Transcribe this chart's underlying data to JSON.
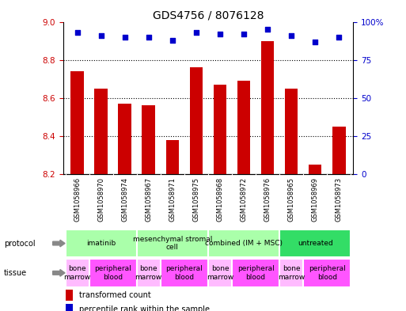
{
  "title": "GDS4756 / 8076128",
  "samples": [
    "GSM1058966",
    "GSM1058970",
    "GSM1058974",
    "GSM1058967",
    "GSM1058971",
    "GSM1058975",
    "GSM1058968",
    "GSM1058972",
    "GSM1058976",
    "GSM1058965",
    "GSM1058969",
    "GSM1058973"
  ],
  "transformed_count": [
    8.74,
    8.65,
    8.57,
    8.56,
    8.38,
    8.76,
    8.67,
    8.69,
    8.9,
    8.65,
    8.25,
    8.45
  ],
  "percentile_rank": [
    93,
    91,
    90,
    90,
    88,
    93,
    92,
    92,
    95,
    91,
    87,
    90
  ],
  "ylim_left": [
    8.2,
    9.0
  ],
  "ylim_right": [
    0,
    100
  ],
  "yticks_left": [
    8.2,
    8.4,
    8.6,
    8.8,
    9.0
  ],
  "yticks_right": [
    0,
    25,
    50,
    75,
    100
  ],
  "bar_color": "#cc0000",
  "dot_color": "#0000cc",
  "protocol_groups": [
    {
      "label": "imatinib",
      "start": 0,
      "end": 3,
      "color": "#aaffaa"
    },
    {
      "label": "mesenchymal stromal\ncell",
      "start": 3,
      "end": 6,
      "color": "#aaffaa"
    },
    {
      "label": "combined (IM + MSC)",
      "start": 6,
      "end": 9,
      "color": "#aaffaa"
    },
    {
      "label": "untreated",
      "start": 9,
      "end": 12,
      "color": "#33dd66"
    }
  ],
  "tissue_groups": [
    {
      "label": "bone\nmarrow",
      "start": 0,
      "end": 1,
      "color": "#ffbbff"
    },
    {
      "label": "peripheral\nblood",
      "start": 1,
      "end": 3,
      "color": "#ff55ff"
    },
    {
      "label": "bone\nmarrow",
      "start": 3,
      "end": 4,
      "color": "#ffbbff"
    },
    {
      "label": "peripheral\nblood",
      "start": 4,
      "end": 6,
      "color": "#ff55ff"
    },
    {
      "label": "bone\nmarrow",
      "start": 6,
      "end": 7,
      "color": "#ffbbff"
    },
    {
      "label": "peripheral\nblood",
      "start": 7,
      "end": 9,
      "color": "#ff55ff"
    },
    {
      "label": "bone\nmarrow",
      "start": 9,
      "end": 10,
      "color": "#ffbbff"
    },
    {
      "label": "peripheral\nblood",
      "start": 10,
      "end": 12,
      "color": "#ff55ff"
    }
  ],
  "bar_color_left": "#cc0000",
  "dot_color_right": "#0000cc",
  "bg_color": "#ffffff",
  "gray_band": "#cccccc",
  "sample_fontsize": 6,
  "axis_fontsize": 7.5,
  "title_fontsize": 10,
  "annot_fontsize": 7,
  "legend_fontsize": 7
}
